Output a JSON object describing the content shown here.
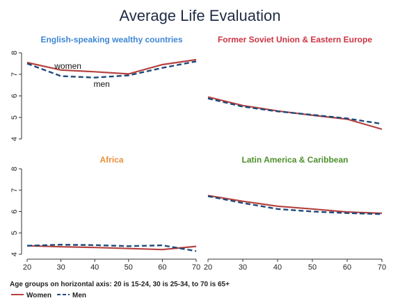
{
  "title": "Average Life Evaluation",
  "note": "Age groups on horizontal axis: 20 is 15-24, 30 is 25-34, to 70 is 65+",
  "legend": [
    {
      "label": "Women",
      "color": "#b5413f",
      "dash": "solid"
    },
    {
      "label": "Men",
      "color": "#1c4a7a",
      "dash": "dashed"
    }
  ],
  "chart_data": [
    {
      "type": "line",
      "title": "English-speaking wealthy countries",
      "title_color": "#3f86d4",
      "x": [
        20,
        30,
        40,
        50,
        60,
        70
      ],
      "xlim": [
        20,
        70
      ],
      "ylim": [
        4,
        8
      ],
      "yticks": [
        4,
        5,
        6,
        7,
        8
      ],
      "series": [
        {
          "name": "Women",
          "values": [
            7.55,
            7.2,
            7.12,
            7.02,
            7.45,
            7.68
          ]
        },
        {
          "name": "Men",
          "values": [
            7.5,
            6.92,
            6.85,
            6.95,
            7.3,
            7.6
          ]
        }
      ],
      "annotations": [
        {
          "text": "women",
          "x": 30,
          "y": 7.38
        },
        {
          "text": "men",
          "x": 40,
          "y": 6.55
        }
      ]
    },
    {
      "type": "line",
      "title": "Former Soviet Union & Eastern Europe",
      "title_color": "#cc3340",
      "x": [
        20,
        30,
        40,
        50,
        60,
        70
      ],
      "xlim": [
        20,
        70
      ],
      "ylim": [
        4,
        8
      ],
      "yticks": [
        4,
        5,
        6,
        7,
        8
      ],
      "series": [
        {
          "name": "Women",
          "values": [
            5.95,
            5.55,
            5.3,
            5.1,
            4.92,
            4.45
          ]
        },
        {
          "name": "Men",
          "values": [
            5.88,
            5.5,
            5.28,
            5.12,
            4.95,
            4.7
          ]
        }
      ]
    },
    {
      "type": "line",
      "title": "Africa",
      "title_color": "#e8913a",
      "x": [
        20,
        30,
        40,
        50,
        60,
        70
      ],
      "xlim": [
        20,
        70
      ],
      "ylim": [
        4,
        8
      ],
      "yticks": [
        4,
        5,
        6,
        7,
        8
      ],
      "series": [
        {
          "name": "Women",
          "values": [
            4.4,
            4.35,
            4.32,
            4.27,
            4.22,
            4.37
          ]
        },
        {
          "name": "Men",
          "values": [
            4.4,
            4.45,
            4.43,
            4.38,
            4.42,
            4.15
          ]
        }
      ]
    },
    {
      "type": "line",
      "title": "Latin America & Caribbean",
      "title_color": "#4d8f2a",
      "x": [
        20,
        30,
        40,
        50,
        60,
        70
      ],
      "xlim": [
        20,
        70
      ],
      "ylim": [
        4,
        8
      ],
      "yticks": [
        4,
        5,
        6,
        7,
        8
      ],
      "series": [
        {
          "name": "Women",
          "values": [
            6.75,
            6.48,
            6.25,
            6.12,
            5.98,
            5.92
          ]
        },
        {
          "name": "Men",
          "values": [
            6.72,
            6.4,
            6.12,
            6.0,
            5.93,
            5.88
          ]
        }
      ]
    }
  ]
}
